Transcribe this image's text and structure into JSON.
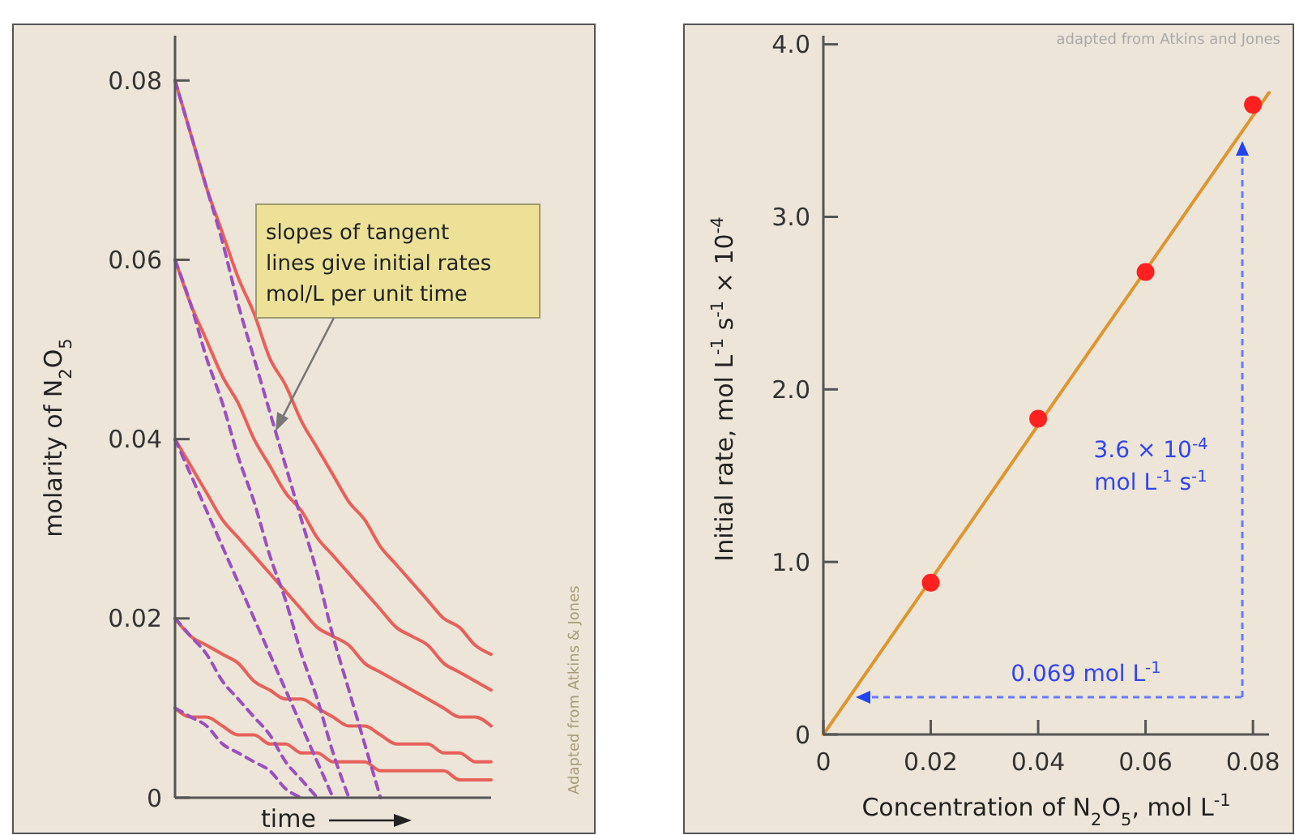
{
  "chart_data": [
    {
      "type": "line",
      "xlabel": "time",
      "ylabel": "molarity of N$_{2}$O$_{5}$",
      "categories": [
        null,
        null,
        null,
        null,
        null,
        null,
        null,
        null,
        null,
        null,
        null,
        null,
        null,
        null,
        null,
        null,
        null,
        null,
        null,
        null,
        null
      ],
      "ylim": [
        0,
        0.085
      ],
      "yticks": [
        0,
        0.02,
        0.04,
        0.06,
        0.08
      ],
      "tick_labels": "y",
      "annotations": [
        "slopes of tangent\nlines give initial rates\nmol/L per unit time",
        "Adapted from Atkins & Jones"
      ],
      "series": [
        {
          "color": "#e8605a",
          "values": [
            0.08,
            0.074,
            0.068,
            0.063,
            0.058,
            0.054,
            0.049,
            0.046,
            0.042,
            0.039,
            0.036,
            0.033,
            0.031,
            0.028,
            0.026,
            0.024,
            0.022,
            0.02,
            0.019,
            0.017,
            0.016
          ]
        },
        {
          "color": "#e8605a",
          "values": [
            0.06,
            0.055,
            0.051,
            0.047,
            0.044,
            0.04,
            0.037,
            0.034,
            0.032,
            0.029,
            0.027,
            0.025,
            0.023,
            0.021,
            0.019,
            0.018,
            0.017,
            0.015,
            0.014,
            0.013,
            0.012
          ]
        },
        {
          "color": "#e8605a",
          "values": [
            0.04,
            0.037,
            0.034,
            0.031,
            0.029,
            0.027,
            0.025,
            0.023,
            0.021,
            0.019,
            0.018,
            0.017,
            0.015,
            0.014,
            0.013,
            0.012,
            0.011,
            0.01,
            0.009,
            0.009,
            0.008
          ]
        },
        {
          "color": "#e8605a",
          "values": [
            0.02,
            0.018,
            0.017,
            0.016,
            0.015,
            0.013,
            0.012,
            0.011,
            0.011,
            0.01,
            0.009,
            0.008,
            0.008,
            0.007,
            0.006,
            0.006,
            0.006,
            0.005,
            0.005,
            0.004,
            0.004
          ]
        },
        {
          "color": "#e8605a",
          "values": [
            0.01,
            0.009,
            0.009,
            0.008,
            0.007,
            0.007,
            0.006,
            0.006,
            0.005,
            0.005,
            0.004,
            0.004,
            0.004,
            0.003,
            0.003,
            0.003,
            0.003,
            0.003,
            0.002,
            0.002,
            0.002
          ]
        },
        {
          "color": "#9b4fc0",
          "line_style": "dashed",
          "values": [
            0.08,
            0.074,
            0.068,
            0.062,
            0.055,
            0.049,
            0.043,
            0.037,
            0.031,
            0.025,
            0.018,
            0.012,
            0.006,
            0,
            null,
            null,
            null,
            null,
            null,
            null,
            null
          ]
        },
        {
          "color": "#9b4fc0",
          "line_style": "dashed",
          "values": [
            0.06,
            0.055,
            0.049,
            0.044,
            0.038,
            0.033,
            0.027,
            0.022,
            0.016,
            0.011,
            0.005,
            0,
            null,
            null,
            null,
            null,
            null,
            null,
            null,
            null,
            null
          ]
        },
        {
          "color": "#9b4fc0",
          "line_style": "dashed",
          "values": [
            0.04,
            0.036,
            0.032,
            0.028,
            0.024,
            0.02,
            0.016,
            0.012,
            0.008,
            0.004,
            0,
            null,
            null,
            null,
            null,
            null,
            null,
            null,
            null,
            null,
            null
          ]
        },
        {
          "color": "#9b4fc0",
          "line_style": "dashed",
          "values": [
            0.02,
            0.018,
            0.016,
            0.013,
            0.011,
            0.009,
            0.007,
            0.004,
            0.002,
            0,
            null,
            null,
            null,
            null,
            null,
            null,
            null,
            null,
            null,
            null,
            null
          ]
        },
        {
          "color": "#9b4fc0",
          "line_style": "dashed",
          "values": [
            0.01,
            0.009,
            0.008,
            0.006,
            0.005,
            0.004,
            0.003,
            0.001,
            0,
            null,
            null,
            null,
            null,
            null,
            null,
            null,
            null,
            null,
            null,
            null,
            null
          ]
        }
      ]
    },
    {
      "type": "scatter",
      "xlabel": "Concentration of N$_{2}$O$_{5}$, mol L$^{-1}$",
      "ylabel": "Initial rate, mol L$^{-1}$ s$^{-1}$ × 10$^{-4}$",
      "xlim": [
        0,
        0.083
      ],
      "xticks": [
        0,
        0.02,
        0.04,
        0.06,
        0.08
      ],
      "ylim": [
        0,
        4.05
      ],
      "yticks": [
        0,
        {
          "value": 1,
          "label": "1.0"
        },
        {
          "value": 2,
          "label": "2.0"
        },
        {
          "value": 3,
          "label": "3.0"
        },
        {
          "value": 4,
          "label": "4.0"
        }
      ],
      "annotations": [
        "adapted from Atkins and Jones",
        "3.6  × 10$^{-4}$",
        "mol L$^{-1}$ s$^{-1}$",
        "0.069 mol L$^{-1}$"
      ],
      "series": [
        {
          "type": "line",
          "marker": "none",
          "color": "#e0952f",
          "x": [
            0,
            0.083
          ],
          "values": [
            0,
            3.72
          ]
        },
        {
          "marker": "circle",
          "color": "#ff2020",
          "x": [
            0.02,
            0.04,
            0.06,
            0.08
          ],
          "values": [
            0.88,
            1.83,
            2.68,
            3.65
          ]
        }
      ]
    }
  ]
}
